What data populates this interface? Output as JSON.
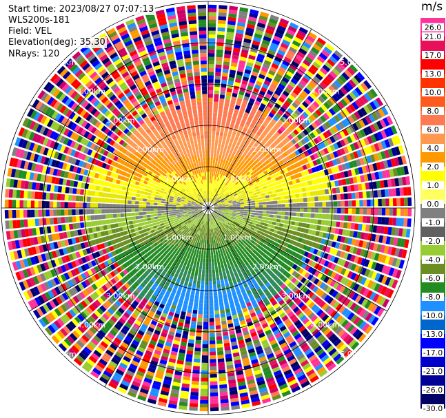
{
  "header": {
    "start_time": "Start time: 2023/08/27 07:07:13",
    "instrument": "WLS200s-181",
    "field": "Field: VEL",
    "elevation": "Elevation(deg): 35.30",
    "nrays": "NRays: 120"
  },
  "chart_data": {
    "type": "heatmap",
    "projection": "polar",
    "field": "VEL",
    "unit": "m/s",
    "nrays": 120,
    "max_range_km": 5.0,
    "range_rings_km": [
      1.0,
      2.0,
      3.0,
      4.0,
      5.0
    ],
    "range_ring_labels": [
      "1.00km",
      "2.00km",
      "3.00km",
      "4.00km",
      "5.00km"
    ],
    "clean_region_km": 2.6,
    "velocity_pattern": {
      "positive_direction": "north",
      "negative_direction": "south",
      "near_zero_band": "east-west"
    },
    "colorbar": {
      "ticks": [
        26.0,
        21.0,
        17.0,
        13.0,
        10.0,
        8.0,
        6.0,
        4.0,
        2.0,
        1.0,
        0.0,
        -1.0,
        -2.0,
        -4.0,
        -6.0,
        -8.0,
        -10.0,
        -13.0,
        -17.0,
        -21.0,
        -26.0,
        -30.0
      ],
      "tick_labels": [
        "26.0",
        "21.0",
        "17.0",
        "13.0",
        "10.0",
        "8.0",
        "6.0",
        "4.0",
        "2.0",
        "1.0",
        "0.0",
        "-1.0",
        "-2.0",
        "-4.0",
        "-6.0",
        "-8.0",
        "-10.0",
        "-13.0",
        "-17.0",
        "-21.0",
        "-26.0",
        "-30.0"
      ],
      "colors": [
        "#ff3399",
        "#e8105a",
        "#ff0000",
        "#ff3300",
        "#ff5a1e",
        "#ff7a50",
        "#ff9950",
        "#ff9900",
        "#ffff00",
        "#ffff60",
        "#808080",
        "#606060",
        "#99cc33",
        "#6b8e23",
        "#228b22",
        "#1e90ff",
        "#0066cc",
        "#0000ff",
        "#0000cc",
        "#000099",
        "#000066"
      ]
    }
  }
}
